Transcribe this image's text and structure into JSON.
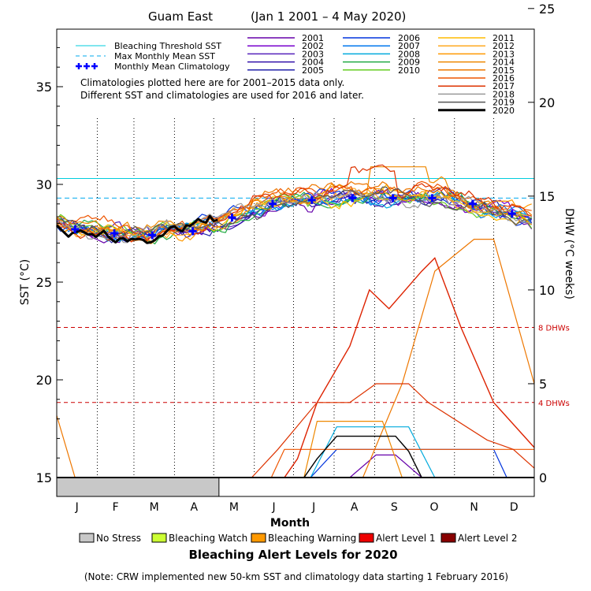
{
  "chart_data": {
    "type": "line",
    "title": "Guam East",
    "date_range": "(Jan 1 2001 – 4 May 2020)",
    "xlabel": "Month",
    "ylabel_left": "SST (°C)",
    "ylabel_right": "DHW (°C weeks)",
    "months": [
      "J",
      "F",
      "M",
      "A",
      "M",
      "J",
      "J",
      "A",
      "S",
      "O",
      "N",
      "D"
    ],
    "sst_ticks": [
      "15",
      "20",
      "25",
      "30",
      "35"
    ],
    "dhw_ticks": [
      "0",
      "5",
      "10",
      "15",
      "20",
      "25"
    ],
    "sst_range": [
      15,
      39
    ],
    "dhw_range": [
      0,
      25
    ],
    "x_range_days": [
      1,
      366
    ],
    "bleaching_threshold_sst": 30.3,
    "max_monthly_mean_sst": 29.3,
    "dhw_lines": [
      {
        "value": 8,
        "label": "8 DHWs",
        "color": "#cc0000"
      },
      {
        "value": 4,
        "label": "4 DHWs",
        "color": "#cc0000"
      }
    ],
    "legend_reference": [
      {
        "label": "Bleaching Threshold SST",
        "color": "#00ccdd",
        "style": "solid"
      },
      {
        "label": "Max Monthly Mean SST",
        "color": "#00aaee",
        "style": "dashed"
      },
      {
        "label": "Monthly Mean Climatology",
        "color": "#0000ff",
        "style": "plus"
      }
    ],
    "notes": [
      "Climatologies plotted here are for 2001–2015 data only.",
      "Different SST and climatologies are used for 2016 and later."
    ],
    "climatology": {
      "x": [
        15,
        45,
        74,
        105,
        135,
        166,
        196,
        227,
        258,
        288,
        319,
        349
      ],
      "y": [
        27.7,
        27.5,
        27.4,
        27.6,
        28.3,
        29.0,
        29.2,
        29.3,
        29.3,
        29.3,
        29.0,
        28.5
      ]
    },
    "series": [
      {
        "name": "2001",
        "color": "#6600aa",
        "width": 1.2,
        "dhw": [
          [
            1,
            0
          ],
          [
            225,
            0
          ],
          [
            245,
            1.2
          ],
          [
            260,
            1.2
          ],
          [
            280,
            0
          ],
          [
            366,
            0
          ]
        ]
      },
      {
        "name": "2002",
        "color": "#7700cc",
        "width": 1.2,
        "dhw": [
          [
            1,
            0
          ],
          [
            366,
            0
          ]
        ]
      },
      {
        "name": "2003",
        "color": "#5522bb",
        "width": 1.2,
        "dhw": [
          [
            1,
            0
          ],
          [
            366,
            0
          ]
        ]
      },
      {
        "name": "2004",
        "color": "#3311aa",
        "width": 1.2,
        "dhw": [
          [
            1,
            0
          ],
          [
            366,
            0
          ]
        ]
      },
      {
        "name": "2005",
        "color": "#2222aa",
        "width": 1.2,
        "dhw": [
          [
            1,
            0
          ],
          [
            366,
            0
          ]
        ]
      },
      {
        "name": "2006",
        "color": "#0033dd",
        "width": 1.2,
        "dhw": [
          [
            1,
            0
          ],
          [
            195,
            0
          ],
          [
            215,
            1.5
          ],
          [
            310,
            1.5
          ],
          [
            335,
            1.5
          ],
          [
            345,
            0
          ],
          [
            366,
            0
          ]
        ]
      },
      {
        "name": "2007",
        "color": "#0077ee",
        "width": 1.2,
        "dhw": [
          [
            1,
            0
          ],
          [
            366,
            0
          ]
        ]
      },
      {
        "name": "2008",
        "color": "#00aadd",
        "width": 1.2,
        "dhw": [
          [
            1,
            0
          ],
          [
            195,
            0
          ],
          [
            215,
            2.7
          ],
          [
            270,
            2.7
          ],
          [
            290,
            0
          ],
          [
            366,
            0
          ]
        ]
      },
      {
        "name": "2009",
        "color": "#22aa44",
        "width": 1.2,
        "dhw": [
          [
            1,
            0
          ],
          [
            366,
            0
          ]
        ]
      },
      {
        "name": "2010",
        "color": "#66cc22",
        "width": 1.2,
        "dhw": [
          [
            1,
            0
          ],
          [
            366,
            0
          ]
        ]
      },
      {
        "name": "2011",
        "color": "#ffbb00",
        "width": 1.2,
        "dhw": [
          [
            1,
            0
          ],
          [
            366,
            0
          ]
        ]
      },
      {
        "name": "2012",
        "color": "#ffaa22",
        "width": 1.2,
        "dhw": [
          [
            1,
            0
          ],
          [
            366,
            0
          ]
        ]
      },
      {
        "name": "2013",
        "color": "#ff9900",
        "width": 1.2,
        "dhw": [
          [
            1,
            0
          ],
          [
            366,
            0
          ]
        ]
      },
      {
        "name": "2014",
        "color": "#ee8800",
        "width": 1.2,
        "dhw": [
          [
            1,
            0
          ],
          [
            190,
            0
          ],
          [
            200,
            3
          ],
          [
            250,
            3
          ],
          [
            265,
            0
          ],
          [
            366,
            0
          ]
        ]
      },
      {
        "name": "2015",
        "color": "#ee7700",
        "width": 1.2,
        "dhw": [
          [
            1,
            3.3
          ],
          [
            15,
            0
          ],
          [
            235,
            0
          ],
          [
            265,
            5
          ],
          [
            290,
            11
          ],
          [
            320,
            12.7
          ],
          [
            335,
            12.7
          ],
          [
            366,
            5
          ]
        ]
      },
      {
        "name": "2016",
        "color": "#ee5500",
        "width": 1.2,
        "dhw": [
          [
            1,
            0
          ],
          [
            165,
            0
          ],
          [
            175,
            1.5
          ],
          [
            215,
            1.5
          ],
          [
            240,
            1.5
          ],
          [
            366,
            1.5
          ]
        ]
      },
      {
        "name": "2017",
        "color": "#dd3300",
        "width": 1.2,
        "dhw": [
          [
            1,
            0
          ],
          [
            150,
            0
          ],
          [
            170,
            1.5
          ],
          [
            200,
            4
          ],
          [
            225,
            4
          ],
          [
            245,
            5
          ],
          [
            270,
            5
          ],
          [
            285,
            4
          ],
          [
            330,
            2
          ],
          [
            350,
            1.5
          ],
          [
            366,
            0.5
          ]
        ]
      },
      {
        "name": "2018",
        "color": "#999999",
        "width": 1.2,
        "dhw": [
          [
            1,
            0
          ],
          [
            366,
            0
          ]
        ]
      },
      {
        "name": "2019",
        "color": "#555555",
        "width": 1.2,
        "dhw": [
          [
            1,
            0
          ],
          [
            366,
            0
          ]
        ]
      },
      {
        "name": "2020",
        "color": "#000000",
        "width": 3,
        "dhw": [
          [
            1,
            0
          ],
          [
            125,
            0
          ]
        ]
      }
    ],
    "dhw_extra": [
      {
        "color": "#dd2200",
        "points": [
          [
            1,
            0
          ],
          [
            175,
            0
          ],
          [
            185,
            1
          ],
          [
            200,
            4
          ],
          [
            225,
            7
          ],
          [
            240,
            10
          ],
          [
            255,
            9
          ],
          [
            280,
            11
          ],
          [
            290,
            11.7
          ],
          [
            310,
            8
          ],
          [
            335,
            4
          ],
          [
            366,
            1.6
          ]
        ]
      },
      {
        "color": "#000000",
        "points": [
          [
            1,
            0
          ],
          [
            190,
            0
          ],
          [
            200,
            1
          ],
          [
            215,
            2.2
          ],
          [
            260,
            2.2
          ],
          [
            270,
            1.4
          ],
          [
            280,
            0
          ],
          [
            366,
            0
          ]
        ]
      }
    ],
    "alert_legend": [
      {
        "label": "No Stress",
        "color": "#c8c8c8"
      },
      {
        "label": "Bleaching Watch",
        "color": "#ccff33"
      },
      {
        "label": "Bleaching Warning",
        "color": "#ff9900"
      },
      {
        "label": "Alert Level 1",
        "color": "#ee0000"
      },
      {
        "label": "Alert Level 2",
        "color": "#880000"
      }
    ],
    "alert_bar_2020": [
      {
        "from_day": 1,
        "to_day": 125,
        "level": "No Stress"
      }
    ],
    "alert_title": "Bleaching Alert Levels for 2020",
    "footnote": "(Note: CRW implemented new 50-km SST and climatology data starting 1 February 2016)"
  }
}
